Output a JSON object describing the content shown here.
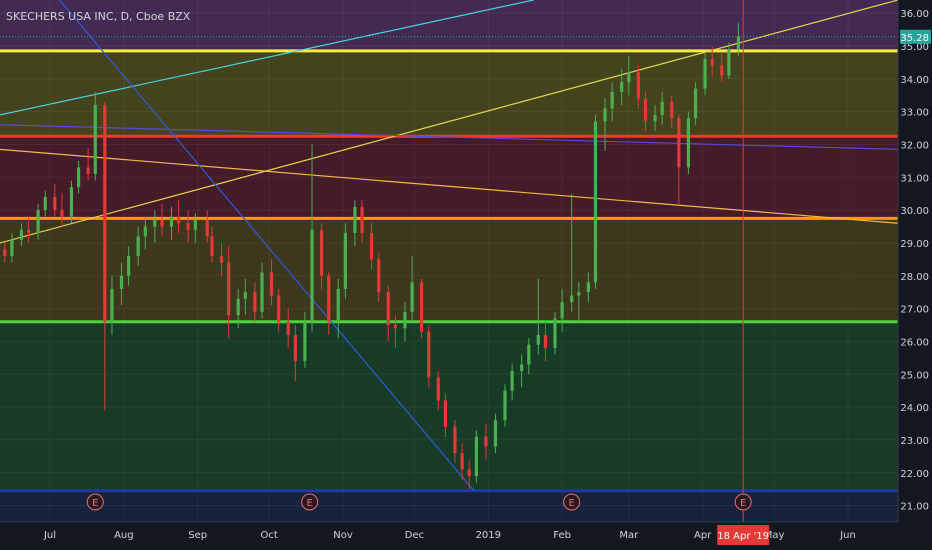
{
  "chart_data": {
    "type": "candlestick",
    "title": "SKECHERS USA INC, D, Cboe BZX",
    "ylim": [
      20.5,
      36.4
    ],
    "y_ticks": [
      21.0,
      22.0,
      23.0,
      24.0,
      25.0,
      26.0,
      27.0,
      28.0,
      29.0,
      30.0,
      31.0,
      32.0,
      33.0,
      34.0,
      35.0,
      36.0
    ],
    "y_tick_labels": [
      "21.00",
      "22.00",
      "23.00",
      "24.00",
      "25.00",
      "26.00",
      "27.00",
      "28.00",
      "29.00",
      "30.00",
      "31.00",
      "32.00",
      "33.00",
      "34.00",
      "35.00",
      "36.00"
    ],
    "x_labels": [
      {
        "label": "Jul",
        "date": "2018-07-01"
      },
      {
        "label": "Aug",
        "date": "2018-08-01"
      },
      {
        "label": "Sep",
        "date": "2018-09-01"
      },
      {
        "label": "Oct",
        "date": "2018-10-01"
      },
      {
        "label": "Nov",
        "date": "2018-11-01"
      },
      {
        "label": "Dec",
        "date": "2018-12-01"
      },
      {
        "label": "2019",
        "date": "2019-01-01"
      },
      {
        "label": "Feb",
        "date": "2019-02-01"
      },
      {
        "label": "Mar",
        "date": "2019-03-01"
      },
      {
        "label": "Apr",
        "date": "2019-04-01"
      },
      {
        "label": "May",
        "date": "2019-05-01"
      },
      {
        "label": "Jun",
        "date": "2019-06-01"
      }
    ],
    "x_range": [
      "2018-06-10",
      "2019-06-22"
    ],
    "current_price": {
      "value": 35.28,
      "label": "35.28",
      "color": "#26a69a"
    },
    "cursor_date": {
      "date": "2019-04-18",
      "label": "18 Apr '19"
    },
    "earnings_markers": {
      "label": "E",
      "dates": [
        "2018-07-20",
        "2018-10-18",
        "2019-02-05",
        "2019-04-18"
      ]
    },
    "price_zones": [
      {
        "from": 34.85,
        "to": 36.4,
        "color": "#6b3b7a"
      },
      {
        "from": 32.25,
        "to": 34.85,
        "color": "#6b6a1a"
      },
      {
        "from": 29.75,
        "to": 32.25,
        "color": "#6e1f2e"
      },
      {
        "from": 26.6,
        "to": 29.75,
        "color": "#5e5219"
      },
      {
        "from": 21.45,
        "to": 26.6,
        "color": "#1c5a29"
      },
      {
        "from": 20.5,
        "to": 21.45,
        "color": "#1a2a52"
      }
    ],
    "horizontal_levels": [
      {
        "value": 34.85,
        "color": "#ffeb3b"
      },
      {
        "value": 32.25,
        "color": "#f23a2a"
      },
      {
        "value": 29.75,
        "color": "#ff9800"
      },
      {
        "value": 26.6,
        "color": "#4cd43a"
      },
      {
        "value": 21.45,
        "color": "#1e3aa0"
      }
    ],
    "trendlines": [
      {
        "start": {
          "date": "2018-06-10",
          "price": 29.0
        },
        "end": {
          "date": "2019-06-22",
          "price": 36.4
        },
        "color": "#e6d84a"
      },
      {
        "start": {
          "date": "2018-06-10",
          "price": 31.85
        },
        "end": {
          "date": "2019-06-22",
          "price": 29.6
        },
        "color": "#f5b942"
      },
      {
        "start": {
          "date": "2018-06-10",
          "price": 32.9
        },
        "end": {
          "date": "2019-01-20",
          "price": 36.4
        },
        "color": "#4dd0e1"
      },
      {
        "start": {
          "date": "2018-06-10",
          "price": 32.6
        },
        "end": {
          "date": "2019-06-22",
          "price": 31.85
        },
        "color": "#5a49d6"
      },
      {
        "start": {
          "date": "2018-07-05",
          "price": 36.4
        },
        "end": {
          "date": "2018-12-26",
          "price": 21.45
        },
        "color": "#2f5bd8"
      }
    ],
    "ohlc": [
      [
        "2018-06-12",
        28.8,
        29.0,
        28.4,
        28.6
      ],
      [
        "2018-06-15",
        28.6,
        29.3,
        28.4,
        29.1
      ],
      [
        "2018-06-19",
        29.1,
        29.6,
        28.9,
        29.4
      ],
      [
        "2018-06-22",
        29.4,
        29.8,
        29.0,
        29.3
      ],
      [
        "2018-06-26",
        29.3,
        30.2,
        29.1,
        30.0
      ],
      [
        "2018-06-29",
        30.0,
        30.6,
        29.8,
        30.4
      ],
      [
        "2018-07-03",
        30.4,
        30.8,
        29.8,
        30.0
      ],
      [
        "2018-07-06",
        30.0,
        30.5,
        29.5,
        29.8
      ],
      [
        "2018-07-10",
        29.8,
        30.9,
        29.6,
        30.7
      ],
      [
        "2018-07-13",
        30.7,
        31.5,
        30.5,
        31.3
      ],
      [
        "2018-07-17",
        31.3,
        31.9,
        30.9,
        31.1
      ],
      [
        "2018-07-20",
        31.1,
        33.6,
        30.9,
        33.2
      ],
      [
        "2018-07-24",
        33.2,
        33.3,
        23.9,
        26.6
      ],
      [
        "2018-07-27",
        26.6,
        28.0,
        26.2,
        27.6
      ],
      [
        "2018-07-31",
        27.6,
        28.4,
        27.1,
        28.0
      ],
      [
        "2018-08-03",
        28.0,
        28.9,
        27.7,
        28.6
      ],
      [
        "2018-08-07",
        28.6,
        29.5,
        28.3,
        29.2
      ],
      [
        "2018-08-10",
        29.2,
        29.8,
        28.8,
        29.5
      ],
      [
        "2018-08-14",
        29.5,
        30.0,
        29.0,
        29.7
      ],
      [
        "2018-08-17",
        29.7,
        30.2,
        29.2,
        29.5
      ],
      [
        "2018-08-21",
        29.5,
        30.1,
        29.1,
        29.8
      ],
      [
        "2018-08-24",
        29.8,
        30.3,
        29.3,
        29.6
      ],
      [
        "2018-08-28",
        29.6,
        30.0,
        29.0,
        29.4
      ],
      [
        "2018-08-31",
        29.4,
        29.9,
        29.0,
        29.7
      ],
      [
        "2018-09-05",
        29.7,
        30.0,
        29.0,
        29.2
      ],
      [
        "2018-09-07",
        29.2,
        29.5,
        28.4,
        28.6
      ],
      [
        "2018-09-11",
        28.6,
        29.0,
        28.0,
        28.4
      ],
      [
        "2018-09-14",
        28.4,
        28.9,
        26.1,
        26.8
      ],
      [
        "2018-09-18",
        26.8,
        27.6,
        26.4,
        27.3
      ],
      [
        "2018-09-21",
        27.3,
        27.9,
        26.8,
        27.5
      ],
      [
        "2018-09-25",
        27.5,
        27.8,
        26.6,
        26.9
      ],
      [
        "2018-09-28",
        26.9,
        28.4,
        26.7,
        28.1
      ],
      [
        "2018-10-02",
        28.1,
        28.5,
        27.1,
        27.4
      ],
      [
        "2018-10-05",
        27.4,
        27.6,
        26.3,
        26.6
      ],
      [
        "2018-10-09",
        26.6,
        27.0,
        25.8,
        26.2
      ],
      [
        "2018-10-12",
        26.2,
        26.5,
        24.8,
        25.4
      ],
      [
        "2018-10-16",
        25.4,
        26.9,
        25.2,
        26.6
      ],
      [
        "2018-10-19",
        26.6,
        32.0,
        26.3,
        29.4
      ],
      [
        "2018-10-23",
        29.4,
        29.6,
        27.6,
        28.0
      ],
      [
        "2018-10-26",
        28.0,
        28.1,
        26.2,
        26.6
      ],
      [
        "2018-10-30",
        26.6,
        27.9,
        26.1,
        27.6
      ],
      [
        "2018-11-02",
        27.6,
        29.6,
        27.3,
        29.3
      ],
      [
        "2018-11-06",
        29.3,
        30.3,
        28.9,
        30.1
      ],
      [
        "2018-11-09",
        30.1,
        30.3,
        29.0,
        29.3
      ],
      [
        "2018-11-13",
        29.3,
        29.6,
        28.2,
        28.5
      ],
      [
        "2018-11-16",
        28.5,
        28.7,
        27.2,
        27.5
      ],
      [
        "2018-11-20",
        27.5,
        27.7,
        26.0,
        26.5
      ],
      [
        "2018-11-23",
        26.5,
        26.8,
        25.8,
        26.4
      ],
      [
        "2018-11-27",
        26.4,
        27.2,
        26.0,
        26.9
      ],
      [
        "2018-11-30",
        26.9,
        28.6,
        26.6,
        27.8
      ],
      [
        "2018-12-04",
        27.8,
        27.9,
        26.1,
        26.3
      ],
      [
        "2018-12-07",
        26.3,
        26.5,
        24.6,
        24.9
      ],
      [
        "2018-12-11",
        24.9,
        25.1,
        23.9,
        24.2
      ],
      [
        "2018-12-14",
        24.2,
        24.4,
        23.1,
        23.4
      ],
      [
        "2018-12-18",
        23.4,
        23.6,
        22.3,
        22.6
      ],
      [
        "2018-12-21",
        22.6,
        22.9,
        21.8,
        22.1
      ],
      [
        "2018-12-24",
        22.1,
        22.4,
        21.5,
        21.9
      ],
      [
        "2018-12-27",
        21.9,
        23.3,
        21.7,
        23.1
      ],
      [
        "2018-12-31",
        23.1,
        23.5,
        22.4,
        22.8
      ],
      [
        "2019-01-04",
        22.8,
        23.8,
        22.6,
        23.6
      ],
      [
        "2019-01-08",
        23.6,
        24.7,
        23.4,
        24.5
      ],
      [
        "2019-01-11",
        24.5,
        25.3,
        24.2,
        25.1
      ],
      [
        "2019-01-15",
        25.1,
        25.6,
        24.6,
        25.3
      ],
      [
        "2019-01-18",
        25.3,
        26.1,
        25.0,
        25.9
      ],
      [
        "2019-01-22",
        25.9,
        27.9,
        25.6,
        26.2
      ],
      [
        "2019-01-25",
        26.2,
        26.6,
        25.4,
        25.8
      ],
      [
        "2019-01-29",
        25.8,
        26.9,
        25.6,
        26.7
      ],
      [
        "2019-02-01",
        26.7,
        27.6,
        26.3,
        27.2
      ],
      [
        "2019-02-05",
        27.2,
        30.5,
        26.9,
        27.4
      ],
      [
        "2019-02-08",
        27.4,
        27.8,
        26.6,
        27.5
      ],
      [
        "2019-02-12",
        27.5,
        28.1,
        27.2,
        27.8
      ],
      [
        "2019-02-15",
        27.8,
        32.9,
        27.6,
        32.7
      ],
      [
        "2019-02-19",
        32.7,
        33.4,
        31.8,
        33.1
      ],
      [
        "2019-02-22",
        33.1,
        33.9,
        32.7,
        33.6
      ],
      [
        "2019-02-26",
        33.6,
        34.3,
        33.2,
        33.9
      ],
      [
        "2019-03-01",
        33.9,
        34.7,
        33.5,
        34.2
      ],
      [
        "2019-03-05",
        34.2,
        34.4,
        33.1,
        33.4
      ],
      [
        "2019-03-08",
        33.4,
        33.6,
        32.4,
        32.7
      ],
      [
        "2019-03-12",
        32.7,
        33.2,
        32.4,
        32.9
      ],
      [
        "2019-03-15",
        32.9,
        33.6,
        32.6,
        33.3
      ],
      [
        "2019-03-19",
        33.3,
        33.5,
        32.5,
        32.8
      ],
      [
        "2019-03-22",
        32.8,
        32.9,
        30.2,
        31.3
      ],
      [
        "2019-03-26",
        31.3,
        33.0,
        31.1,
        32.8
      ],
      [
        "2019-03-29",
        32.8,
        33.9,
        32.6,
        33.7
      ],
      [
        "2019-04-02",
        33.7,
        34.8,
        33.5,
        34.6
      ],
      [
        "2019-04-05",
        34.6,
        35.0,
        34.1,
        34.4
      ],
      [
        "2019-04-09",
        34.4,
        34.8,
        33.9,
        34.1
      ],
      [
        "2019-04-12",
        34.1,
        35.1,
        34.0,
        34.9
      ],
      [
        "2019-04-16",
        34.9,
        35.7,
        34.7,
        35.3
      ]
    ]
  },
  "colors": {
    "background": "#131722",
    "up_candle": "#4caf50",
    "down_candle": "#e53935",
    "axis_text": "#d1d4dc",
    "cursor_line": "#e53935",
    "earnings_marker": "#e57373"
  }
}
